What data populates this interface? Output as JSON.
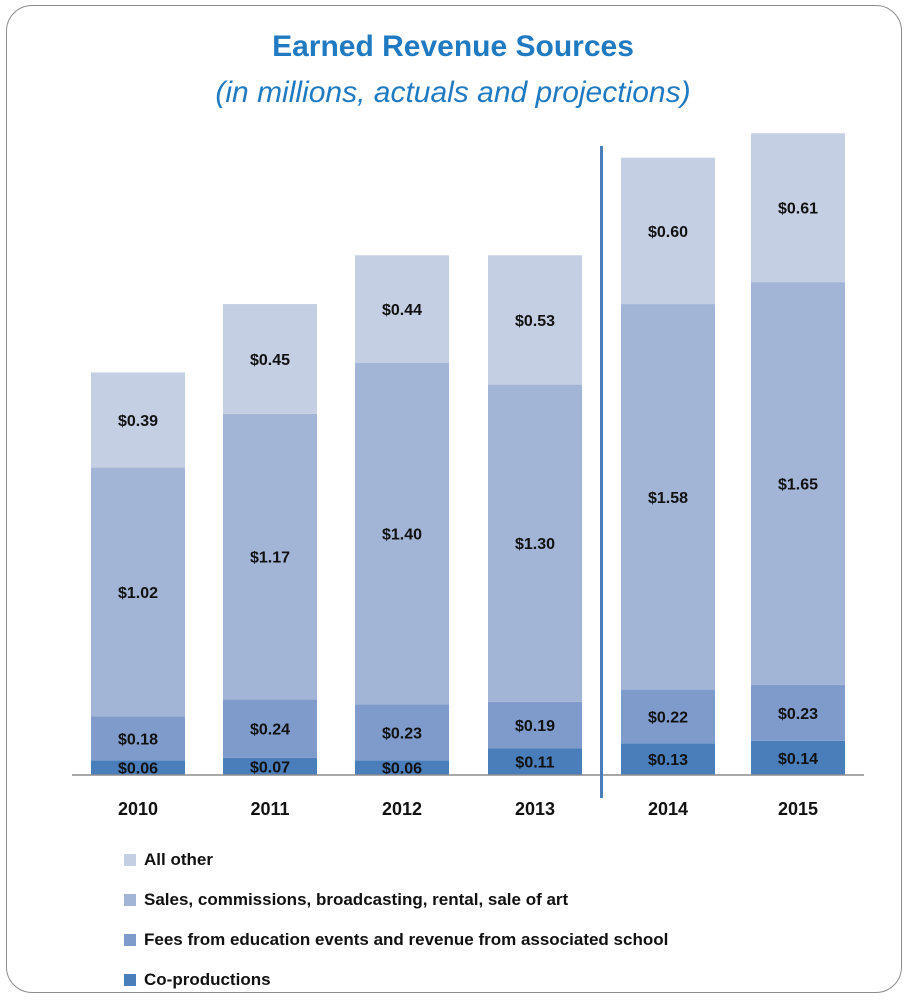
{
  "chart_data": {
    "type": "bar",
    "stacked": true,
    "title": "Earned Revenue Sources",
    "subtitle": "(in millions, actuals and projections)",
    "categories": [
      "2010",
      "2011",
      "2012",
      "2013",
      "2014",
      "2015"
    ],
    "series": [
      {
        "name": "Co-productions",
        "color": "#4a7ebb",
        "values": [
          0.06,
          0.07,
          0.06,
          0.11,
          0.13,
          0.14
        ],
        "labels": [
          "$0.06",
          "$0.07",
          "$0.06",
          "$0.11",
          "$0.13",
          "$0.14"
        ]
      },
      {
        "name": "Fees from education events and revenue from associated school",
        "color": "#7e9bcb",
        "values": [
          0.18,
          0.24,
          0.23,
          0.19,
          0.22,
          0.23
        ],
        "labels": [
          "$0.18",
          "$0.24",
          "$0.23",
          "$0.19",
          "$0.22",
          "$0.23"
        ]
      },
      {
        "name": "Sales, commissions, broadcasting, rental, sale of art",
        "color": "#a2b5d6",
        "values": [
          1.02,
          1.17,
          1.4,
          1.3,
          1.58,
          1.65
        ],
        "labels": [
          "$1.02",
          "$1.17",
          "$1.40",
          "$1.30",
          "$1.58",
          "$1.65"
        ]
      },
      {
        "name": "All other",
        "color": "#c4cfe3",
        "values": [
          0.39,
          0.45,
          0.44,
          0.53,
          0.6,
          0.61
        ],
        "labels": [
          "$0.39",
          "$0.45",
          "$0.44",
          "$0.53",
          "$0.60",
          "$0.61"
        ]
      }
    ],
    "divider_after_category": "2013",
    "divider_color": "#4a7ebb",
    "legend_position": "bottom-left",
    "legend_order": [
      "All other",
      "Sales, commissions, broadcasting, rental, sale of art",
      "Fees from education events and revenue from associated school",
      "Co-productions"
    ],
    "grid": false
  }
}
